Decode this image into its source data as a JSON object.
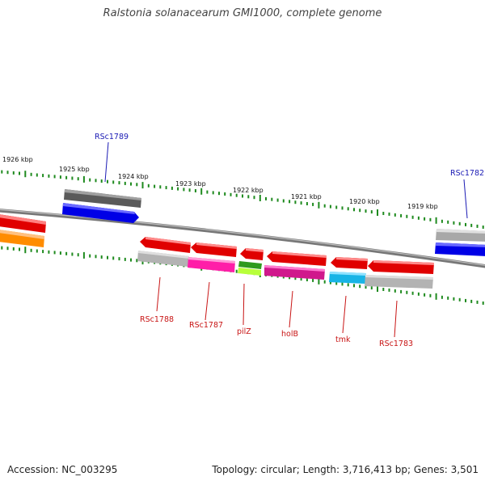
{
  "title": "Ralstonia solanacearum GMI1000, complete genome",
  "footer": {
    "accession": "Accession: NC_003295",
    "summary": "Topology: circular; Length: 3,716,413 bp; Genes: 3,501"
  },
  "colors": {
    "backbone": "#7a7a7a",
    "ticks": "#1e8a1e",
    "label_forward": "#1a1ab4",
    "label_reverse": "#c81414"
  },
  "kbp_labels": [
    "1926 kbp",
    "1925 kbp",
    "1924 kbp",
    "1923 kbp",
    "1922 kbp",
    "1921 kbp",
    "1920 kbp",
    "1919 kbp"
  ],
  "genes": [
    {
      "name": "RSc1789",
      "strand": "forward",
      "label_color": "#1a1ab4"
    },
    {
      "name": "RSc1782",
      "strand": "forward",
      "label_color": "#1a1ab4"
    },
    {
      "name": "RSc1788",
      "strand": "reverse",
      "label_color": "#c81414"
    },
    {
      "name": "RSc1787",
      "strand": "reverse",
      "label_color": "#c81414"
    },
    {
      "name": "pilZ",
      "strand": "reverse",
      "label_color": "#c81414"
    },
    {
      "name": "holB",
      "strand": "reverse",
      "label_color": "#c81414"
    },
    {
      "name": "tmk",
      "strand": "reverse",
      "label_color": "#c81414"
    },
    {
      "name": "RSc1783",
      "strand": "reverse",
      "label_color": "#c81414"
    }
  ]
}
